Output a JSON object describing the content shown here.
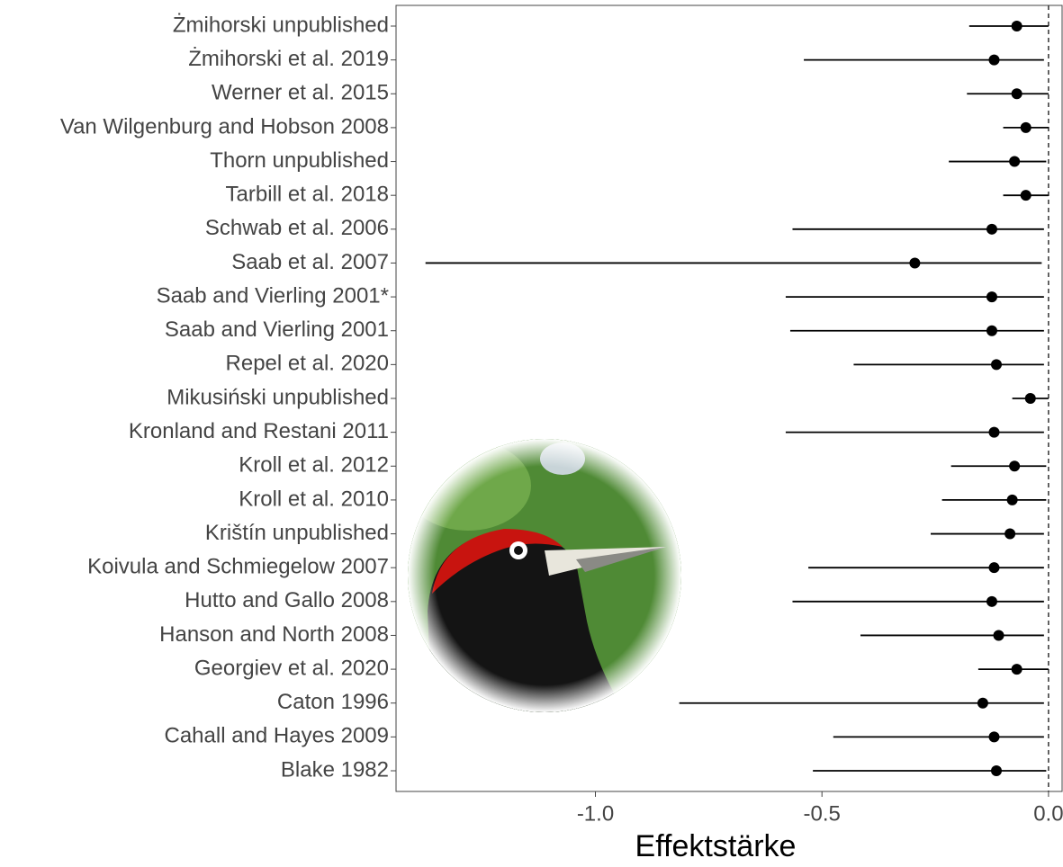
{
  "chart_data": {
    "type": "forest",
    "x_label": "Effektstärke",
    "categories": [
      "Żmihorski unpublished",
      "Żmihorski et al. 2019",
      "Werner et al. 2015",
      "Van Wilgenburg and Hobson 2008",
      "Thorn unpublished",
      "Tarbill et al. 2018",
      "Schwab et al. 2006",
      "Saab et al. 2007",
      "Saab and Vierling 2001*",
      "Saab and Vierling 2001",
      "Repel et al. 2020",
      "Mikusiński unpublished",
      "Kronland and Restani 2011",
      "Kroll et al. 2012",
      "Kroll et al. 2010",
      "Krištín unpublished",
      "Koivula and Schmiegelow 2007",
      "Hutto and Gallo 2008",
      "Hanson and North 2008",
      "Georgiev et al. 2020",
      "Caton 1996",
      "Cahall and Hayes 2009",
      "Blake 1982"
    ],
    "values": [
      -0.07,
      -0.12,
      -0.07,
      -0.05,
      -0.075,
      -0.05,
      -0.125,
      -0.295,
      -0.125,
      -0.125,
      -0.115,
      -0.04,
      -0.12,
      -0.075,
      -0.08,
      -0.085,
      -0.12,
      -0.125,
      -0.11,
      -0.07,
      -0.145,
      -0.12,
      -0.115
    ],
    "lower": [
      -0.175,
      -0.54,
      -0.18,
      -0.1,
      -0.22,
      -0.1,
      -0.565,
      -1.375,
      -0.58,
      -0.57,
      -0.43,
      -0.08,
      -0.58,
      -0.215,
      -0.235,
      -0.26,
      -0.53,
      -0.565,
      -0.415,
      -0.155,
      -0.815,
      -0.475,
      -0.52
    ],
    "upper": [
      0.0,
      -0.01,
      0.0,
      0.0,
      -0.005,
      0.0,
      -0.01,
      -0.015,
      -0.01,
      -0.01,
      -0.01,
      0.0,
      -0.01,
      -0.005,
      -0.005,
      -0.01,
      -0.01,
      -0.01,
      -0.01,
      0.0,
      -0.01,
      -0.01,
      -0.005
    ],
    "color": "#000000",
    "xlim": [
      -1.44,
      0.03
    ],
    "xticks": [
      {
        "value": -1.0,
        "label": "-1.0"
      },
      {
        "value": -0.5,
        "label": "-0.5"
      },
      {
        "value": 0.0,
        "label": "0.0"
      }
    ],
    "reference_line": 0
  }
}
